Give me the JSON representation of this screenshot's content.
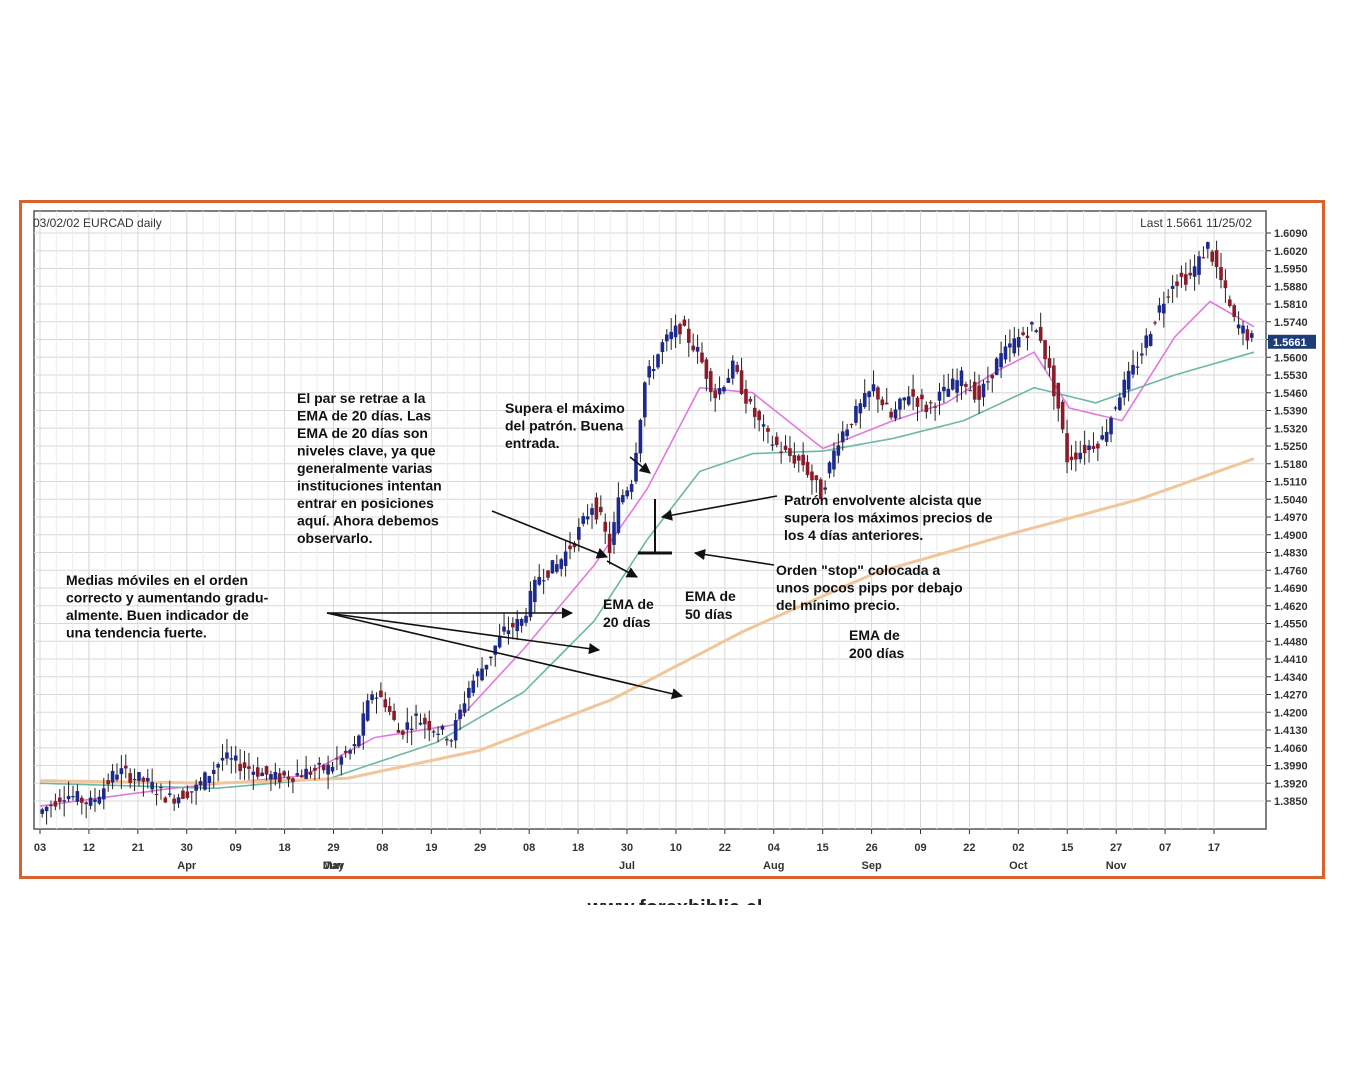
{
  "chart_data": {
    "type": "candlestick",
    "title": "03/02/02 EURCAD daily",
    "last_label": "Last 1.5661  11/25/02",
    "last_value": "1.5661",
    "y_ticks": [
      "1.6090",
      "1.6020",
      "1.5950",
      "1.5880",
      "1.5810",
      "1.5740",
      "1.5670",
      "1.5600",
      "1.5530",
      "1.5460",
      "1.5390",
      "1.5320",
      "1.5250",
      "1.5180",
      "1.5110",
      "1.5040",
      "1.4970",
      "1.4900",
      "1.4830",
      "1.4760",
      "1.4690",
      "1.4620",
      "1.4550",
      "1.4480",
      "1.4410",
      "1.4340",
      "1.4270",
      "1.4200",
      "1.4130",
      "1.4060",
      "1.3990",
      "1.3920",
      "1.3850"
    ],
    "ylim": [
      1.3745,
      1.612
    ],
    "x_day_ticks": [
      "03",
      "12",
      "21",
      "30",
      "09",
      "18",
      "29",
      "08",
      "19",
      "29",
      "08",
      "18",
      "30",
      "10",
      "22",
      "04",
      "15",
      "26",
      "09",
      "22",
      "02",
      "15",
      "27",
      "07",
      "17"
    ],
    "x_month_labels": [
      {
        "label": "Apr",
        "under": "30"
      },
      {
        "label": "May",
        "under": "29"
      },
      {
        "label": "Jun",
        "under": "29"
      },
      {
        "label": "Jul",
        "under": "30"
      },
      {
        "label": "Aug",
        "under": "04"
      },
      {
        "label": "Sep",
        "under": "26"
      },
      {
        "label": "Oct",
        "under": "02"
      },
      {
        "label": "Nov",
        "under": "27"
      }
    ],
    "price_path": [
      [
        0,
        1.38
      ],
      [
        6,
        1.388
      ],
      [
        12,
        1.384
      ],
      [
        18,
        1.397
      ],
      [
        24,
        1.393
      ],
      [
        30,
        1.386
      ],
      [
        36,
        1.39
      ],
      [
        42,
        1.402
      ],
      [
        48,
        1.398
      ],
      [
        54,
        1.394
      ],
      [
        60,
        1.396
      ],
      [
        66,
        1.398
      ],
      [
        72,
        1.406
      ],
      [
        76,
        1.428
      ],
      [
        79,
        1.424
      ],
      [
        82,
        1.412
      ],
      [
        86,
        1.418
      ],
      [
        90,
        1.414
      ],
      [
        94,
        1.41
      ],
      [
        98,
        1.43
      ],
      [
        102,
        1.44
      ],
      [
        106,
        1.452
      ],
      [
        110,
        1.456
      ],
      [
        114,
        1.474
      ],
      [
        118,
        1.478
      ],
      [
        122,
        1.488
      ],
      [
        126,
        1.502
      ],
      [
        128,
        1.496
      ],
      [
        130,
        1.484
      ],
      [
        132,
        1.503
      ],
      [
        135,
        1.512
      ],
      [
        138,
        1.55
      ],
      [
        142,
        1.565
      ],
      [
        146,
        1.572
      ],
      [
        150,
        1.562
      ],
      [
        154,
        1.545
      ],
      [
        158,
        1.556
      ],
      [
        162,
        1.54
      ],
      [
        166,
        1.528
      ],
      [
        170,
        1.522
      ],
      [
        174,
        1.518
      ],
      [
        178,
        1.506
      ],
      [
        182,
        1.528
      ],
      [
        186,
        1.538
      ],
      [
        190,
        1.548
      ],
      [
        194,
        1.536
      ],
      [
        198,
        1.546
      ],
      [
        202,
        1.54
      ],
      [
        206,
        1.546
      ],
      [
        210,
        1.552
      ],
      [
        214,
        1.544
      ],
      [
        218,
        1.558
      ],
      [
        222,
        1.566
      ],
      [
        226,
        1.572
      ],
      [
        228,
        1.568
      ],
      [
        232,
        1.54
      ],
      [
        234,
        1.52
      ],
      [
        238,
        1.524
      ],
      [
        242,
        1.528
      ],
      [
        246,
        1.546
      ],
      [
        250,
        1.558
      ],
      [
        254,
        1.576
      ],
      [
        258,
        1.59
      ],
      [
        262,
        1.592
      ],
      [
        266,
        1.604
      ],
      [
        269,
        1.59
      ],
      [
        272,
        1.574
      ],
      [
        276,
        1.567
      ]
    ],
    "series": [
      {
        "name": "EMA de 20 dias",
        "color": "#e279de",
        "values": [
          [
            0,
            1.383
          ],
          [
            30,
            1.39
          ],
          [
            60,
            1.395
          ],
          [
            76,
            1.41
          ],
          [
            94,
            1.415
          ],
          [
            110,
            1.445
          ],
          [
            126,
            1.478
          ],
          [
            138,
            1.508
          ],
          [
            150,
            1.548
          ],
          [
            162,
            1.546
          ],
          [
            178,
            1.524
          ],
          [
            194,
            1.535
          ],
          [
            206,
            1.542
          ],
          [
            218,
            1.555
          ],
          [
            226,
            1.562
          ],
          [
            234,
            1.54
          ],
          [
            246,
            1.535
          ],
          [
            258,
            1.568
          ],
          [
            266,
            1.582
          ],
          [
            276,
            1.572
          ]
        ]
      },
      {
        "name": "EMA de 50 dias",
        "color": "#6ab8a5",
        "values": [
          [
            0,
            1.392
          ],
          [
            40,
            1.39
          ],
          [
            66,
            1.394
          ],
          [
            90,
            1.408
          ],
          [
            110,
            1.428
          ],
          [
            126,
            1.456
          ],
          [
            138,
            1.488
          ],
          [
            150,
            1.515
          ],
          [
            162,
            1.522
          ],
          [
            178,
            1.523
          ],
          [
            194,
            1.528
          ],
          [
            210,
            1.535
          ],
          [
            226,
            1.548
          ],
          [
            240,
            1.542
          ],
          [
            258,
            1.553
          ],
          [
            276,
            1.562
          ]
        ]
      },
      {
        "name": "EMA de 200 dias",
        "color": "#f0c69a",
        "values": [
          [
            0,
            1.393
          ],
          [
            40,
            1.392
          ],
          [
            70,
            1.394
          ],
          [
            100,
            1.405
          ],
          [
            130,
            1.425
          ],
          [
            160,
            1.452
          ],
          [
            190,
            1.475
          ],
          [
            220,
            1.49
          ],
          [
            250,
            1.504
          ],
          [
            276,
            1.52
          ]
        ]
      }
    ],
    "annotations": {
      "retrace": [
        "El par se retrae a la",
        "EMA de 20 días. Las",
        "EMA de 20 días son",
        "niveles clave, ya que",
        "generalmente varias",
        "instituciones intentan",
        "entrar en posiciones",
        "aquí. Ahora debemos",
        "observarlo."
      ],
      "breakout": [
        "Supera el máximo",
        "del patrón. Buena",
        "entrada."
      ],
      "engulfing": [
        "Patrón envolvente alcista que",
        "supera los máximos precios de",
        "los 4 días anteriores."
      ],
      "stop": [
        "Orden \"stop\" colocada a",
        "unos pocos pips por debajo",
        "del mínimo precio."
      ],
      "averages": [
        "Medias móviles en el orden",
        "correcto y aumentando gradu-",
        "almente. Buen indicador de",
        "una tendencia fuerte."
      ],
      "ema20": [
        "EMA de",
        "20 días"
      ],
      "ema50": [
        "EMA de",
        "50 días"
      ],
      "ema200": [
        "EMA de",
        "200 días"
      ]
    },
    "grid": true,
    "legend": "none"
  },
  "footer_text": "www.forexbiblia.cl"
}
